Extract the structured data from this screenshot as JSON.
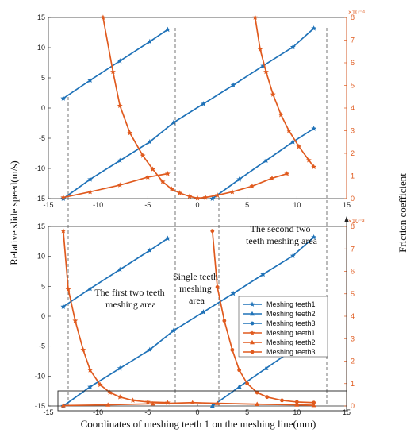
{
  "figure": {
    "ylabel_left": "Relative slide speed(m/s)",
    "ylabel_right": "Friction coefficient",
    "xlabel": "Coordinates of meshing teeth 1 on the meshing line(mm)",
    "annotations": {
      "first_two": [
        "The first two teeth",
        "meshing area"
      ],
      "single": [
        "Single teeth",
        "meshing",
        "area"
      ],
      "second_two": [
        "The second two",
        "teeth meshing area"
      ]
    }
  },
  "chart_data": [
    {
      "type": "line",
      "panel": "top",
      "x_ticks": [
        -15,
        -10,
        -5,
        0,
        5,
        10,
        15
      ],
      "xlim": [
        -15,
        15
      ],
      "left_axis": {
        "ylim": [
          -15,
          15
        ],
        "ticks": [
          -15,
          -10,
          -5,
          0,
          5,
          10,
          15
        ],
        "color": "#1f72b8"
      },
      "right_axis": {
        "ylim": [
          0,
          8
        ],
        "ticks": [
          0,
          1,
          2,
          3,
          4,
          5,
          6,
          7,
          8
        ],
        "exponent": "×10⁻⁴",
        "color": "#e05a1e"
      },
      "grid": false,
      "series": [
        {
          "axis": "left",
          "color": "#1f72b8",
          "marker": "star",
          "x": [
            -13.5,
            -10.8,
            -7.8,
            -4.8,
            -3.0
          ],
          "y": [
            1.6,
            4.6,
            7.8,
            11.0,
            13.0
          ]
        },
        {
          "axis": "left",
          "color": "#1f72b8",
          "marker": "star",
          "x": [
            -13.5,
            -10.8,
            -7.8,
            -4.8,
            -2.4,
            0.6,
            3.6,
            6.6,
            9.6,
            11.7
          ],
          "y": [
            -15.0,
            -11.8,
            -8.7,
            -5.6,
            -2.4,
            0.7,
            3.8,
            7.0,
            10.1,
            13.2
          ]
        },
        {
          "axis": "left",
          "color": "#1f72b8",
          "marker": "star",
          "x": [
            1.5,
            4.2,
            6.9,
            9.6,
            11.7
          ],
          "y": [
            -15.0,
            -11.8,
            -8.7,
            -5.6,
            -3.4
          ]
        },
        {
          "axis": "right",
          "color": "#e05a1e",
          "marker": "star",
          "x": [
            -13.5,
            -10.8,
            -7.8,
            -5.0,
            -3.0
          ],
          "y": [
            0.05,
            0.3,
            0.6,
            0.95,
            1.1
          ]
        },
        {
          "axis": "right",
          "color": "#e05a1e",
          "marker": "star",
          "x": [
            -9.5,
            -8.5,
            -7.8,
            -6.8,
            -5.5,
            -4.5,
            -3.5,
            -2.6,
            -1.8,
            -0.8,
            0.0,
            0.8
          ],
          "y": [
            8.0,
            5.6,
            4.1,
            2.9,
            1.9,
            1.3,
            0.75,
            0.42,
            0.25,
            0.1,
            0.02,
            0.05
          ]
        },
        {
          "axis": "right",
          "color": "#e05a1e",
          "marker": "star",
          "x": [
            0.8,
            2.0,
            3.5,
            5.5,
            7.5,
            9.0
          ],
          "y": [
            0.05,
            0.15,
            0.3,
            0.55,
            0.9,
            1.1
          ]
        },
        {
          "axis": "right",
          "color": "#e05a1e",
          "marker": "star",
          "x": [
            5.8,
            6.3,
            6.9,
            7.6,
            8.4,
            9.2,
            10.2,
            11.2,
            11.7
          ],
          "y": [
            8.0,
            6.6,
            5.6,
            4.6,
            3.7,
            3.0,
            2.3,
            1.7,
            1.4
          ]
        }
      ]
    },
    {
      "type": "line",
      "panel": "bottom",
      "x_ticks": [
        -15,
        -10,
        -5,
        0,
        5,
        10,
        15
      ],
      "xlim": [
        -15,
        15
      ],
      "left_axis": {
        "ylim": [
          -15,
          15
        ],
        "ticks": [
          -15,
          -10,
          -5,
          0,
          5,
          10,
          15
        ],
        "color": "#1f72b8"
      },
      "right_axis": {
        "ylim": [
          0,
          8
        ],
        "ticks": [
          0,
          1,
          2,
          3,
          4,
          5,
          6,
          7,
          8
        ],
        "exponent": "×10⁻³",
        "color": "#e05a1e"
      },
      "grid": false,
      "legend_position": "center-right",
      "series": [
        {
          "name": "Meshing teeth1",
          "axis": "left",
          "color": "#1f72b8",
          "marker": "star",
          "x": [
            -13.5,
            -10.8,
            -7.8,
            -4.8,
            -3.0,
            -13.5,
            -10.8,
            -7.8,
            -4.8,
            -2.4,
            0.6,
            3.6,
            6.6,
            9.6,
            11.7
          ],
          "y": [
            1.6,
            4.6,
            7.8,
            11.0,
            13.0,
            -15.0,
            -11.8,
            -8.7,
            -5.6,
            -2.4,
            0.7,
            3.8,
            7.0,
            10.1,
            13.2
          ]
        },
        {
          "name": "Meshing teeth2",
          "axis": "left",
          "color": "#1f72b8",
          "marker": "triangle",
          "x": [
            1.5,
            4.2,
            6.9,
            9.6,
            11.7
          ],
          "y": [
            -15.0,
            -11.8,
            -8.7,
            -5.6,
            -3.4
          ]
        },
        {
          "name": "Meshing teeth3",
          "axis": "left",
          "color": "#1f72b8",
          "marker": "circle",
          "x": [],
          "y": []
        },
        {
          "name": "Meshing teeth1",
          "axis": "right",
          "color": "#e05a1e",
          "marker": "star",
          "x": [
            -13.5,
            -13.0,
            -12.3,
            -11.5,
            -10.8,
            -9.8,
            -8.8,
            -7.8,
            -6.5,
            -5.0,
            -3.0
          ],
          "y": [
            7.8,
            5.2,
            3.8,
            2.5,
            1.6,
            0.95,
            0.6,
            0.4,
            0.25,
            0.18,
            0.15
          ]
        },
        {
          "name": "Meshing teeth2",
          "axis": "right",
          "color": "#e05a1e",
          "marker": "triangle",
          "x": [
            -13.5,
            -9.0,
            -4.5,
            -0.5,
            2.0,
            6.0,
            10.0,
            11.7
          ],
          "y": [
            0.02,
            0.05,
            0.1,
            0.15,
            0.12,
            0.08,
            0.05,
            0.03
          ]
        },
        {
          "name": "Meshing teeth3",
          "axis": "right",
          "color": "#e05a1e",
          "marker": "circle",
          "x": [
            1.5,
            2.0,
            2.7,
            3.5,
            4.2,
            5.0,
            6.0,
            7.0,
            8.5,
            10.0,
            11.7
          ],
          "y": [
            7.8,
            5.3,
            3.8,
            2.5,
            1.6,
            1.0,
            0.6,
            0.4,
            0.25,
            0.18,
            0.15
          ]
        }
      ]
    }
  ]
}
